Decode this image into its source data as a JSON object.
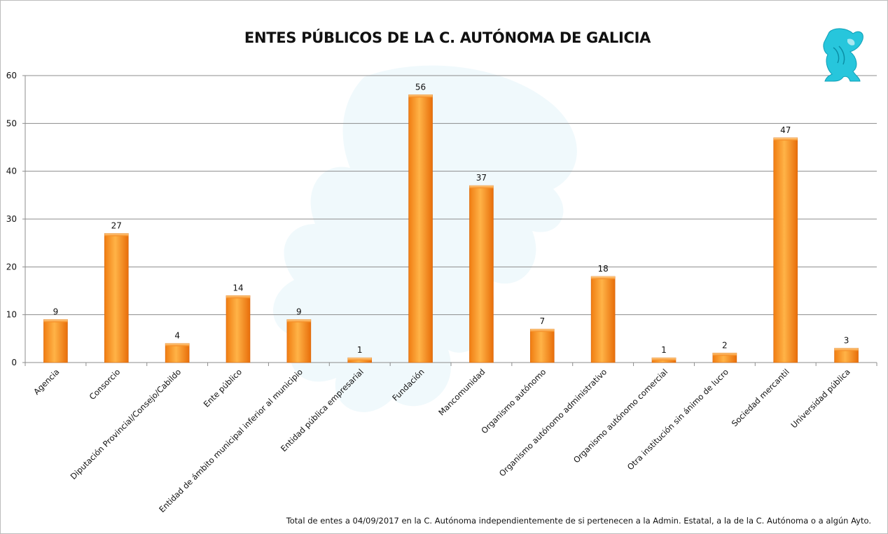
{
  "chart_data": {
    "type": "bar",
    "title": "ENTES PÚBLICOS DE LA C. AUTÓNOMA DE GALICIA",
    "categories": [
      "Agencia",
      "Consorcio",
      "Diputación Provincial/Consejo/Cabildo",
      "Ente público",
      "Entidad de ámbito municipal inferior al municipio",
      "Entidad pública empresarial",
      "Fundación",
      "Mancomunidad",
      "Organismo autónomo",
      "Organismo autónomo administrativo",
      "Organismo autónomo comercial",
      "Otra institución sin ánimo de lucro",
      "Sociedad mercantil",
      "Universidad pública"
    ],
    "values": [
      9,
      27,
      4,
      14,
      9,
      1,
      56,
      37,
      7,
      18,
      1,
      2,
      47,
      3
    ],
    "ylim": [
      0,
      60
    ],
    "yticks": [
      0,
      10,
      20,
      30,
      40,
      50,
      60
    ],
    "xlabel": "",
    "ylabel": "",
    "grid": true,
    "bar_color": "#f58a1f",
    "data_labels": true
  },
  "footnote": "Total de entes a 04/09/2017 en la C. Autónoma independientemente de si pertenecen a la Admin. Estatal, a la de la C. Autónoma o a algún Ayto.",
  "logo": {
    "icon": "griffin-logo-icon",
    "color": "#27c6dc"
  }
}
